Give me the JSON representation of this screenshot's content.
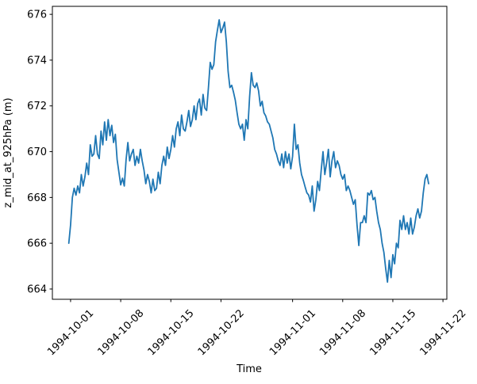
{
  "chart_data": {
    "type": "line",
    "title": "",
    "xlabel": "Time",
    "ylabel": "z_mid_at_925hPa (m)",
    "grid": false,
    "legend": null,
    "line_color": "#1f77b4",
    "axis_color": "#000000",
    "y_ticks": [
      664,
      666,
      668,
      670,
      672,
      674,
      676
    ],
    "x_tick_labels": [
      "1994-10-01",
      "1994-10-08",
      "1994-10-15",
      "1994-10-22",
      "1994-11-01",
      "1994-11-08",
      "1994-11-15",
      "1994-11-22"
    ],
    "ylim": [
      663.55,
      676.35
    ],
    "xlim": [
      "1994-09-28T11:00",
      "1994-11-22T13:00"
    ],
    "series": [
      {
        "name": "z_mid_at_925hPa",
        "start": "1994-09-30T18:00",
        "step_hours": 6,
        "values": [
          666.0,
          666.8,
          668.0,
          668.4,
          668.1,
          668.5,
          668.2,
          669.0,
          668.5,
          668.9,
          669.5,
          669.0,
          670.3,
          669.8,
          669.9,
          670.7,
          669.9,
          669.7,
          670.9,
          670.3,
          671.3,
          670.5,
          671.4,
          670.7,
          671.15,
          670.4,
          670.76,
          669.65,
          669.1,
          668.55,
          668.84,
          668.5,
          669.65,
          670.4,
          669.6,
          669.9,
          670.1,
          669.4,
          669.8,
          669.5,
          670.1,
          669.6,
          669.2,
          668.6,
          669.0,
          668.7,
          668.2,
          668.8,
          668.3,
          668.4,
          669.1,
          668.6,
          669.4,
          669.8,
          669.4,
          670.2,
          669.7,
          670.1,
          670.7,
          670.2,
          671.0,
          671.3,
          670.7,
          671.6,
          671.0,
          670.9,
          671.3,
          671.8,
          671.1,
          671.4,
          672.0,
          671.4,
          672.1,
          672.3,
          671.6,
          672.5,
          671.9,
          671.8,
          672.8,
          673.9,
          673.6,
          673.8,
          674.8,
          675.3,
          675.76,
          675.2,
          675.4,
          675.66,
          674.8,
          673.5,
          672.8,
          672.9,
          672.6,
          672.25,
          671.7,
          671.2,
          671.0,
          671.2,
          670.5,
          671.4,
          671.0,
          672.4,
          673.45,
          672.9,
          672.8,
          673.0,
          672.66,
          672.0,
          672.2,
          671.7,
          671.56,
          671.3,
          671.2,
          670.9,
          670.6,
          670.1,
          669.9,
          669.6,
          669.4,
          669.9,
          669.3,
          670.0,
          669.5,
          669.9,
          669.25,
          669.8,
          671.2,
          670.1,
          670.3,
          669.5,
          669.0,
          668.75,
          668.46,
          668.2,
          668.1,
          667.8,
          668.5,
          667.4,
          667.9,
          668.7,
          668.3,
          669.2,
          670.0,
          669.0,
          669.5,
          670.1,
          668.9,
          669.6,
          670.0,
          669.3,
          669.6,
          669.4,
          669.0,
          668.8,
          669.0,
          668.3,
          668.5,
          668.3,
          668.0,
          667.7,
          667.9,
          666.8,
          665.9,
          666.9,
          666.9,
          667.2,
          666.9,
          668.2,
          668.1,
          668.3,
          667.9,
          668.0,
          667.4,
          666.9,
          666.6,
          666.0,
          665.6,
          664.9,
          664.3,
          665.25,
          664.5,
          665.5,
          665.1,
          666.0,
          665.8,
          667.0,
          666.6,
          667.2,
          666.6,
          666.9,
          666.4,
          667.1,
          666.4,
          666.7,
          667.2,
          667.5,
          667.1,
          667.4,
          668.2,
          668.8,
          669.0,
          668.6
        ]
      }
    ]
  }
}
